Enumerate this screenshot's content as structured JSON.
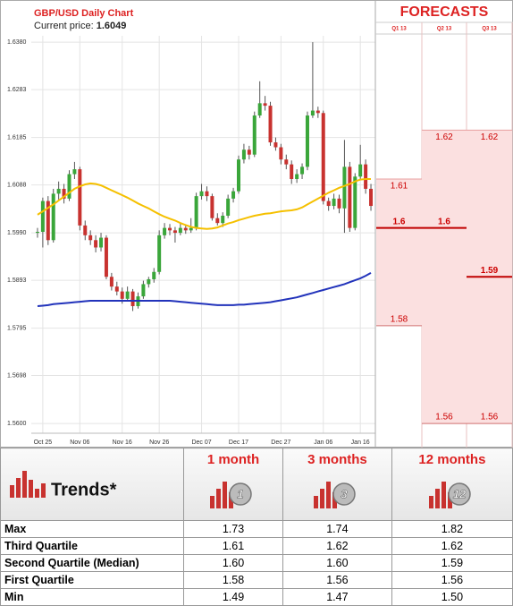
{
  "chart_data": {
    "type": "candlestick",
    "title": "GBP/USD Daily Chart",
    "current_price_label": "Current price:",
    "current_price": 1.6049,
    "categories": [
      null,
      "Oct 25",
      null,
      null,
      null,
      null,
      null,
      null,
      "Nov 06",
      null,
      null,
      null,
      null,
      null,
      null,
      null,
      "Nov 16",
      null,
      null,
      null,
      null,
      null,
      null,
      "Nov 26",
      null,
      null,
      null,
      null,
      null,
      null,
      null,
      "Dec 07",
      null,
      null,
      null,
      null,
      null,
      null,
      "Dec 17",
      null,
      null,
      null,
      null,
      null,
      null,
      null,
      "Dec 27",
      null,
      null,
      null,
      null,
      null,
      null,
      null,
      "Jan 06",
      null,
      null,
      null,
      null,
      null,
      null,
      "Jan 16",
      null,
      null
    ],
    "candles": [
      [
        1.599,
        1.6,
        1.598,
        1.5992
      ],
      [
        1.5992,
        1.6062,
        1.596,
        1.6055
      ],
      [
        1.6055,
        1.6065,
        1.5965,
        1.5975
      ],
      [
        1.5975,
        1.608,
        1.597,
        1.607
      ],
      [
        1.607,
        1.6095,
        1.6058,
        1.608
      ],
      [
        1.608,
        1.609,
        1.605,
        1.606
      ],
      [
        1.606,
        1.6118,
        1.6055,
        1.611
      ],
      [
        1.611,
        1.6135,
        1.61,
        1.612
      ],
      [
        1.612,
        1.6125,
        1.5995,
        1.6005
      ],
      [
        1.6005,
        1.6015,
        1.5975,
        1.5985
      ],
      [
        1.5985,
        1.5995,
        1.5965,
        1.5975
      ],
      [
        1.5975,
        1.5985,
        1.595,
        1.596
      ],
      [
        1.596,
        1.599,
        1.5952,
        1.598
      ],
      [
        1.598,
        1.5985,
        1.5895,
        1.59
      ],
      [
        1.59,
        1.5908,
        1.5872,
        1.588
      ],
      [
        1.588,
        1.589,
        1.5862,
        1.587
      ],
      [
        1.587,
        1.5878,
        1.5845,
        1.5855
      ],
      [
        1.5855,
        1.588,
        1.585,
        1.587
      ],
      [
        1.587,
        1.5875,
        1.583,
        1.584
      ],
      [
        1.584,
        1.5868,
        1.5835,
        1.586
      ],
      [
        1.586,
        1.5892,
        1.5855,
        1.5885
      ],
      [
        1.5885,
        1.59,
        1.5878,
        1.5895
      ],
      [
        1.5895,
        1.5918,
        1.5888,
        1.591
      ],
      [
        1.591,
        1.5995,
        1.5905,
        1.5985
      ],
      [
        1.5985,
        1.601,
        1.5978,
        1.6
      ],
      [
        1.6,
        1.6008,
        1.5985,
        1.5995
      ],
      [
        1.5995,
        1.6002,
        1.597,
        1.599
      ],
      [
        1.599,
        1.601,
        1.5985,
        1.6
      ],
      [
        1.6,
        1.6005,
        1.5988,
        1.5995
      ],
      [
        1.5995,
        1.602,
        1.599,
        1.6
      ],
      [
        1.6,
        1.6072,
        1.5995,
        1.6065
      ],
      [
        1.6065,
        1.609,
        1.6058,
        1.6075
      ],
      [
        1.6075,
        1.6085,
        1.6055,
        1.6065
      ],
      [
        1.6065,
        1.607,
        1.6015,
        1.602
      ],
      [
        1.602,
        1.603,
        1.6005,
        1.601
      ],
      [
        1.601,
        1.6032,
        1.6002,
        1.6025
      ],
      [
        1.6025,
        1.6068,
        1.602,
        1.606
      ],
      [
        1.606,
        1.6082,
        1.6052,
        1.6075
      ],
      [
        1.6075,
        1.6148,
        1.607,
        1.614
      ],
      [
        1.614,
        1.6172,
        1.6132,
        1.616
      ],
      [
        1.616,
        1.6168,
        1.614,
        1.615
      ],
      [
        1.615,
        1.6238,
        1.6145,
        1.623
      ],
      [
        1.623,
        1.63,
        1.6225,
        1.6255
      ],
      [
        1.6255,
        1.627,
        1.624,
        1.625
      ],
      [
        1.625,
        1.6258,
        1.6168,
        1.6175
      ],
      [
        1.6175,
        1.6185,
        1.6158,
        1.6165
      ],
      [
        1.6165,
        1.6172,
        1.613,
        1.614
      ],
      [
        1.614,
        1.615,
        1.612,
        1.613
      ],
      [
        1.613,
        1.6138,
        1.609,
        1.61
      ],
      [
        1.61,
        1.612,
        1.6092,
        1.611
      ],
      [
        1.611,
        1.6132,
        1.61,
        1.6125
      ],
      [
        1.6125,
        1.6238,
        1.6118,
        1.623
      ],
      [
        1.623,
        1.638,
        1.6225,
        1.624
      ],
      [
        1.624,
        1.6248,
        1.6225,
        1.6235
      ],
      [
        1.6235,
        1.624,
        1.6048,
        1.6055
      ],
      [
        1.6055,
        1.6062,
        1.6035,
        1.6045
      ],
      [
        1.6045,
        1.607,
        1.6038,
        1.606
      ],
      [
        1.606,
        1.6068,
        1.603,
        1.604
      ],
      [
        1.604,
        1.618,
        1.599,
        1.6125
      ],
      [
        1.6125,
        1.6135,
        1.5992,
        1.6
      ],
      [
        1.6,
        1.6112,
        1.5995,
        1.6105
      ],
      [
        1.6105,
        1.617,
        1.6098,
        1.613
      ],
      [
        1.613,
        1.614,
        1.607,
        1.608
      ],
      [
        1.608,
        1.609,
        1.6035,
        1.6045
      ]
    ],
    "up_color": "#3aa63a",
    "down_color": "#c8322f",
    "series": [
      {
        "color": "#f5c000",
        "values": [
          1.6027,
          1.6034,
          1.6041,
          1.6048,
          1.6056,
          1.6064,
          1.6072,
          1.608,
          1.6085,
          1.6089,
          1.6091,
          1.609,
          1.6087,
          1.6082,
          1.6077,
          1.6072,
          1.6067,
          1.6062,
          1.6056,
          1.605,
          1.6045,
          1.604,
          1.6034,
          1.6028,
          1.6023,
          1.6019,
          1.6015,
          1.601,
          1.6006,
          1.6002,
          1.6,
          1.5999,
          1.5998,
          1.5999,
          1.6001,
          1.6005,
          1.6009,
          1.6012,
          1.6016,
          1.6019,
          1.6022,
          1.6025,
          1.6027,
          1.6029,
          1.603,
          1.6032,
          1.6034,
          1.6035,
          1.6036,
          1.6038,
          1.6042,
          1.6048,
          1.6054,
          1.606,
          1.6066,
          1.6072,
          1.6077,
          1.6082,
          1.6086,
          1.609,
          1.6095,
          1.6099,
          1.61,
          1.61
        ]
      },
      {
        "color": "#2233bb",
        "values": [
          1.584,
          1.5841,
          1.5842,
          1.5844,
          1.5845,
          1.5846,
          1.5847,
          1.5848,
          1.5849,
          1.585,
          1.5851,
          1.5851,
          1.5851,
          1.5851,
          1.5851,
          1.5851,
          1.5851,
          1.5851,
          1.5851,
          1.5851,
          1.5851,
          1.5851,
          1.5851,
          1.5851,
          1.5851,
          1.5851,
          1.585,
          1.5849,
          1.5848,
          1.5847,
          1.5846,
          1.5845,
          1.5844,
          1.5843,
          1.5842,
          1.5842,
          1.5842,
          1.5842,
          1.5843,
          1.5843,
          1.5844,
          1.5845,
          1.5846,
          1.5847,
          1.5848,
          1.585,
          1.5852,
          1.5854,
          1.5856,
          1.5858,
          1.5861,
          1.5864,
          1.5867,
          1.587,
          1.5873,
          1.5876,
          1.5879,
          1.5882,
          1.5885,
          1.5889,
          1.5893,
          1.5897,
          1.5902,
          1.5908
        ]
      }
    ],
    "ylim": [
      1.558,
      1.6393
    ],
    "yticks": [
      {
        "value": 1.638,
        "label": "1.6380"
      },
      1.6283,
      1.6185,
      1.6088,
      {
        "value": 1.599,
        "label": "1.5990"
      },
      1.5893,
      1.5795,
      1.5698,
      {
        "value": 1.56,
        "label": "1.5600"
      }
    ],
    "grid": true,
    "forecasts": {
      "title": "FORECASTS",
      "columns": [
        "Q1 13",
        "Q2 13",
        "Q3 13"
      ],
      "high": [
        1.61,
        1.62,
        1.62
      ],
      "median": [
        1.6,
        1.6,
        1.59
      ],
      "low": [
        1.58,
        1.56,
        1.56
      ],
      "color": "#fbe0e0",
      "line_color": "#c00000"
    }
  },
  "table": {
    "title": "Trends*",
    "columns": [
      "1 month",
      "3 months",
      "12 months"
    ],
    "badges": [
      "1",
      "3",
      "12"
    ],
    "rows": [
      [
        "Max",
        "1.73",
        "1.74",
        "1.82"
      ],
      [
        "Third Quartile",
        "1.61",
        "1.62",
        "1.62"
      ],
      [
        "Second Quartile (Median)",
        "1.60",
        "1.60",
        "1.59"
      ],
      [
        "First Quartile",
        "1.58",
        "1.56",
        "1.56"
      ],
      [
        "Min",
        "1.49",
        "1.47",
        "1.50"
      ]
    ]
  }
}
